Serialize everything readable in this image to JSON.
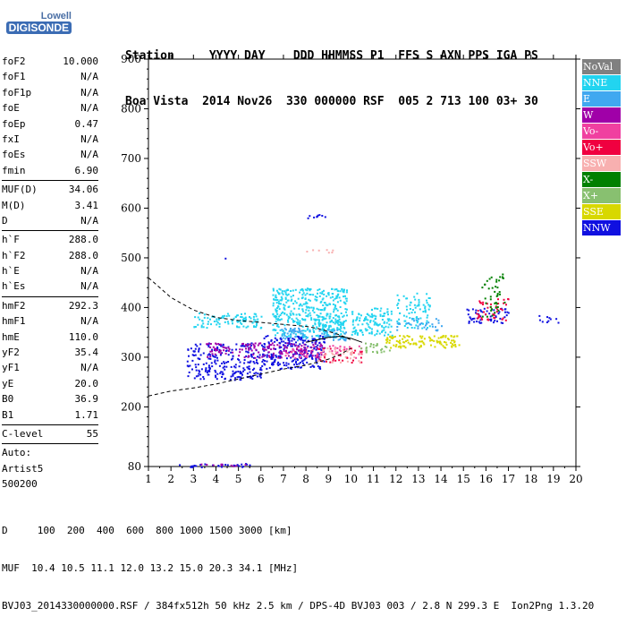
{
  "logo": {
    "brand": "Lowell",
    "product": "DIGISONDE"
  },
  "header": {
    "line1": "Station     YYYY DAY    DDD HHMMSS P1  FFS S AXN PPS IGA PS",
    "line2": "Boa Vista  2014 Nov26  330 000000 RSF  005 2 713 100 03+ 30"
  },
  "params": [
    {
      "label": "foF2",
      "value": "10.000"
    },
    {
      "label": "foF1",
      "value": "N/A"
    },
    {
      "label": "foF1p",
      "value": "N/A"
    },
    {
      "label": "foE",
      "value": "N/A"
    },
    {
      "label": "foEp",
      "value": "0.47"
    },
    {
      "label": "fxI",
      "value": "N/A"
    },
    {
      "label": "foEs",
      "value": "N/A"
    },
    {
      "label": "fmin",
      "value": "6.90"
    },
    {
      "sep": true
    },
    {
      "label": "MUF(D)",
      "value": "34.06"
    },
    {
      "label": "M(D)",
      "value": "3.41"
    },
    {
      "label": "D",
      "value": "N/A"
    },
    {
      "sep": true
    },
    {
      "label": "h`F",
      "value": "288.0"
    },
    {
      "label": "h`F2",
      "value": "288.0"
    },
    {
      "label": "h`E",
      "value": "N/A"
    },
    {
      "label": "h`Es",
      "value": "N/A"
    },
    {
      "sep": true
    },
    {
      "label": "hmF2",
      "value": "292.3"
    },
    {
      "label": "hmF1",
      "value": "N/A"
    },
    {
      "label": "hmE",
      "value": "110.0"
    },
    {
      "label": "yF2",
      "value": "35.4"
    },
    {
      "label": "yF1",
      "value": "N/A"
    },
    {
      "label": "yE",
      "value": "20.0"
    },
    {
      "label": "B0",
      "value": "36.9"
    },
    {
      "label": "B1",
      "value": "1.71"
    },
    {
      "sep": true
    },
    {
      "label": "C-level",
      "value": "55"
    },
    {
      "sep": true
    },
    {
      "label": "Auto:",
      "value": ""
    },
    {
      "label": "Artist5",
      "value": ""
    },
    {
      "label": "500200",
      "value": ""
    }
  ],
  "footer": {
    "line1": "D     100  200  400  600  800 1000 1500 3000 [km]",
    "line2": "MUF  10.4 10.5 11.1 12.0 13.2 15.0 20.3 34.1 [MHz]",
    "line3": "BVJ03_2014330000000.RSF / 384fx512h 50 kHz 2.5 km / DPS-4D BVJ03 003 / 2.8 N 299.3 E  Ion2Png 1.3.20"
  },
  "legend": [
    {
      "name": "NoVal",
      "color": "#808080"
    },
    {
      "name": "NNE",
      "color": "#22d4f0"
    },
    {
      "name": "E",
      "color": "#40a8f0"
    },
    {
      "name": "W",
      "color": "#a000a8"
    },
    {
      "name": "Vo-",
      "color": "#f040a0"
    },
    {
      "name": "Vo+",
      "color": "#f00040"
    },
    {
      "name": "SSW",
      "color": "#f8b0b0"
    },
    {
      "name": "X-",
      "color": "#008000"
    },
    {
      "name": "X+",
      "color": "#88c070"
    },
    {
      "name": "SSE",
      "color": "#d8d800"
    },
    {
      "name": "NNW",
      "color": "#1010e0"
    }
  ],
  "chart_data": {
    "type": "scatter",
    "xlim": [
      1,
      20
    ],
    "ylim": [
      80,
      900
    ],
    "x_ticks": [
      1,
      2,
      3,
      4,
      5,
      6,
      7,
      8,
      9,
      10,
      11,
      12,
      13,
      14,
      15,
      16,
      17,
      18,
      19,
      20
    ],
    "y_ticks": [
      80,
      200,
      300,
      400,
      500,
      600,
      700,
      800,
      900
    ],
    "clusters": [
      {
        "mode": "NNE",
        "x": [
          3.0,
          6.0
        ],
        "y": [
          360,
          390
        ],
        "density": 0.7
      },
      {
        "mode": "NNE",
        "x": [
          6.5,
          9.8
        ],
        "y": [
          340,
          440
        ],
        "density": 0.9
      },
      {
        "mode": "NNE",
        "x": [
          10.0,
          11.8
        ],
        "y": [
          345,
          400
        ],
        "density": 0.8
      },
      {
        "mode": "E",
        "x": [
          6.8,
          9.8
        ],
        "y": [
          335,
          360
        ],
        "density": 0.7
      },
      {
        "mode": "NNW",
        "x": [
          2.7,
          6.0
        ],
        "y": [
          255,
          330
        ],
        "density": 0.6
      },
      {
        "mode": "NNW",
        "x": [
          6.0,
          8.8
        ],
        "y": [
          278,
          345
        ],
        "density": 0.8
      },
      {
        "mode": "W",
        "x": [
          3.5,
          8.8
        ],
        "y": [
          300,
          330
        ],
        "density": 0.6
      },
      {
        "mode": "Vo-",
        "x": [
          7.0,
          10.5
        ],
        "y": [
          300,
          325
        ],
        "density": 0.4
      },
      {
        "mode": "Vo+",
        "x": [
          8.5,
          10.5
        ],
        "y": [
          290,
          320
        ],
        "density": 0.3
      },
      {
        "mode": "SSW",
        "x": [
          8.5,
          10.5
        ],
        "y": [
          290,
          320
        ],
        "density": 0.4
      },
      {
        "mode": "X+",
        "x": [
          10.2,
          11.8
        ],
        "y": [
          310,
          330
        ],
        "density": 0.5
      },
      {
        "mode": "SSE",
        "x": [
          11.5,
          14.8
        ],
        "y": [
          320,
          345
        ],
        "density": 0.9
      },
      {
        "mode": "NNE",
        "x": [
          12.0,
          13.5
        ],
        "y": [
          360,
          430
        ],
        "density": 0.5
      },
      {
        "mode": "E",
        "x": [
          12.0,
          14.0
        ],
        "y": [
          355,
          380
        ],
        "density": 0.4
      },
      {
        "mode": "NNW",
        "x": [
          15.0,
          17.0
        ],
        "y": [
          370,
          400
        ],
        "density": 0.6
      },
      {
        "mode": "Vo+",
        "x": [
          15.5,
          17.0
        ],
        "y": [
          375,
          420
        ],
        "density": 0.4
      },
      {
        "mode": "X-",
        "x": [
          15.8,
          16.8
        ],
        "y": [
          380,
          470
        ],
        "density": 0.3
      },
      {
        "mode": "NNW",
        "x": [
          18.3,
          19.2
        ],
        "y": [
          370,
          385
        ],
        "density": 0.5
      },
      {
        "mode": "NNW",
        "x": [
          2.3,
          5.5
        ],
        "y": [
          80,
          87
        ],
        "density": 0.8
      },
      {
        "mode": "W",
        "x": [
          3.3,
          5.5
        ],
        "y": [
          80,
          86
        ],
        "density": 0.5
      },
      {
        "mode": "NNW",
        "x": [
          8.0,
          9.2
        ],
        "y": [
          580,
          590
        ],
        "density": 0.5
      },
      {
        "mode": "SSW",
        "x": [
          8.0,
          9.2
        ],
        "y": [
          510,
          520
        ],
        "density": 0.4
      },
      {
        "mode": "NNW",
        "x": [
          4.2,
          5.0
        ],
        "y": [
          500,
          503
        ],
        "density": 0.4
      }
    ],
    "profile_curves": [
      {
        "x": [
          1.0,
          2.0,
          3.0,
          4.0,
          5.0,
          6.0,
          7.0,
          8.0,
          8.5,
          9.0,
          9.5,
          10.0
        ],
        "y": [
          460,
          420,
          395,
          380,
          374,
          370,
          366,
          362,
          358,
          352,
          345,
          335
        ]
      },
      {
        "x": [
          1.0,
          2.0,
          3.0,
          4.0,
          5.0,
          6.0,
          7.0,
          7.5,
          8.0,
          8.5,
          9.0,
          9.5,
          10.0
        ],
        "y": [
          222,
          232,
          238,
          246,
          256,
          266,
          276,
          280,
          284,
          290,
          296,
          305,
          318
        ]
      },
      {
        "x": [
          8.0,
          8.5,
          9.0,
          9.5,
          10.0,
          10.5
        ],
        "y": [
          330,
          335,
          340,
          342,
          338,
          330
        ]
      }
    ]
  }
}
